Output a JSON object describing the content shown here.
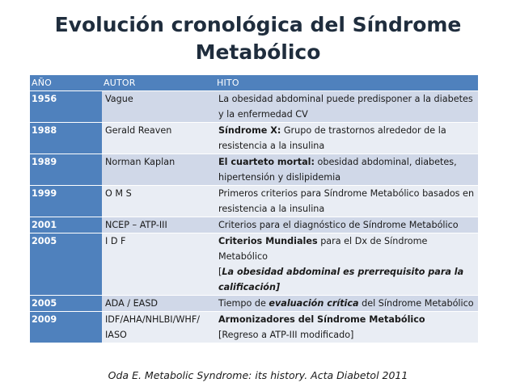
{
  "title": {
    "line1": "Evolución cronológica del Síndrome",
    "line2": "Metabólico"
  },
  "table": {
    "headers": {
      "year": "AÑO",
      "author": "AUTOR",
      "milestone": "HITO"
    },
    "rows": [
      {
        "year": "1956",
        "author": "Vague",
        "milestone": [
          {
            "t": "La obesidad abdominal puede predisponer a la diabetes y la enfermedad CV",
            "s": "n"
          }
        ]
      },
      {
        "year": "1988",
        "author": "Gerald Reaven",
        "milestone": [
          {
            "t": "Síndrome X:",
            "s": "b"
          },
          {
            "t": " Grupo de trastornos alrededor de la resistencia a la insulina",
            "s": "n"
          }
        ]
      },
      {
        "year": "1989",
        "author": "Norman Kaplan",
        "milestone": [
          {
            "t": "El cuarteto mortal:",
            "s": "b"
          },
          {
            "t": " obesidad abdominal, diabetes, hipertensión y dislipidemia",
            "s": "n"
          }
        ]
      },
      {
        "year": "1999",
        "author": "O M S",
        "milestone": [
          {
            "t": "Primeros criterios para Síndrome Metabólico basados en resistencia a la insulina",
            "s": "n"
          }
        ]
      },
      {
        "year": "2001",
        "author": "NCEP – ATP-III",
        "milestone": [
          {
            "t": "Criterios para el diagnóstico de Síndrome Metabólico",
            "s": "n"
          }
        ]
      },
      {
        "year": "2005",
        "author": "I D F",
        "milestone": [
          {
            "t": "Criterios Mundiales",
            "s": "b"
          },
          {
            "t": " para el Dx de Síndrome Metabólico",
            "s": "n"
          },
          {
            "t": "",
            "s": "br"
          },
          {
            "t": "[",
            "s": "n"
          },
          {
            "t": "La obesidad abdominal es prerrequisito para la calificación]",
            "s": "bi"
          }
        ]
      },
      {
        "year": "2005",
        "author": "ADA / EASD",
        "milestone": [
          {
            "t": "Tiempo de ",
            "s": "n"
          },
          {
            "t": "evaluación crítica",
            "s": "bi"
          },
          {
            "t": " del Síndrome Metabólico",
            "s": "n"
          }
        ]
      },
      {
        "year": "2009",
        "author": "IDF/AHA/NHLBI/WHF/ IASO",
        "milestone": [
          {
            "t": "Armonizadores del Síndrome Metabólico",
            "s": "b"
          },
          {
            "t": "",
            "s": "br"
          },
          {
            "t": "[Regreso a ATP-III modificado]",
            "s": "n"
          }
        ]
      }
    ]
  },
  "citation": "Oda E. Metabolic Syndrome: its history. Acta Diabetol 2011"
}
